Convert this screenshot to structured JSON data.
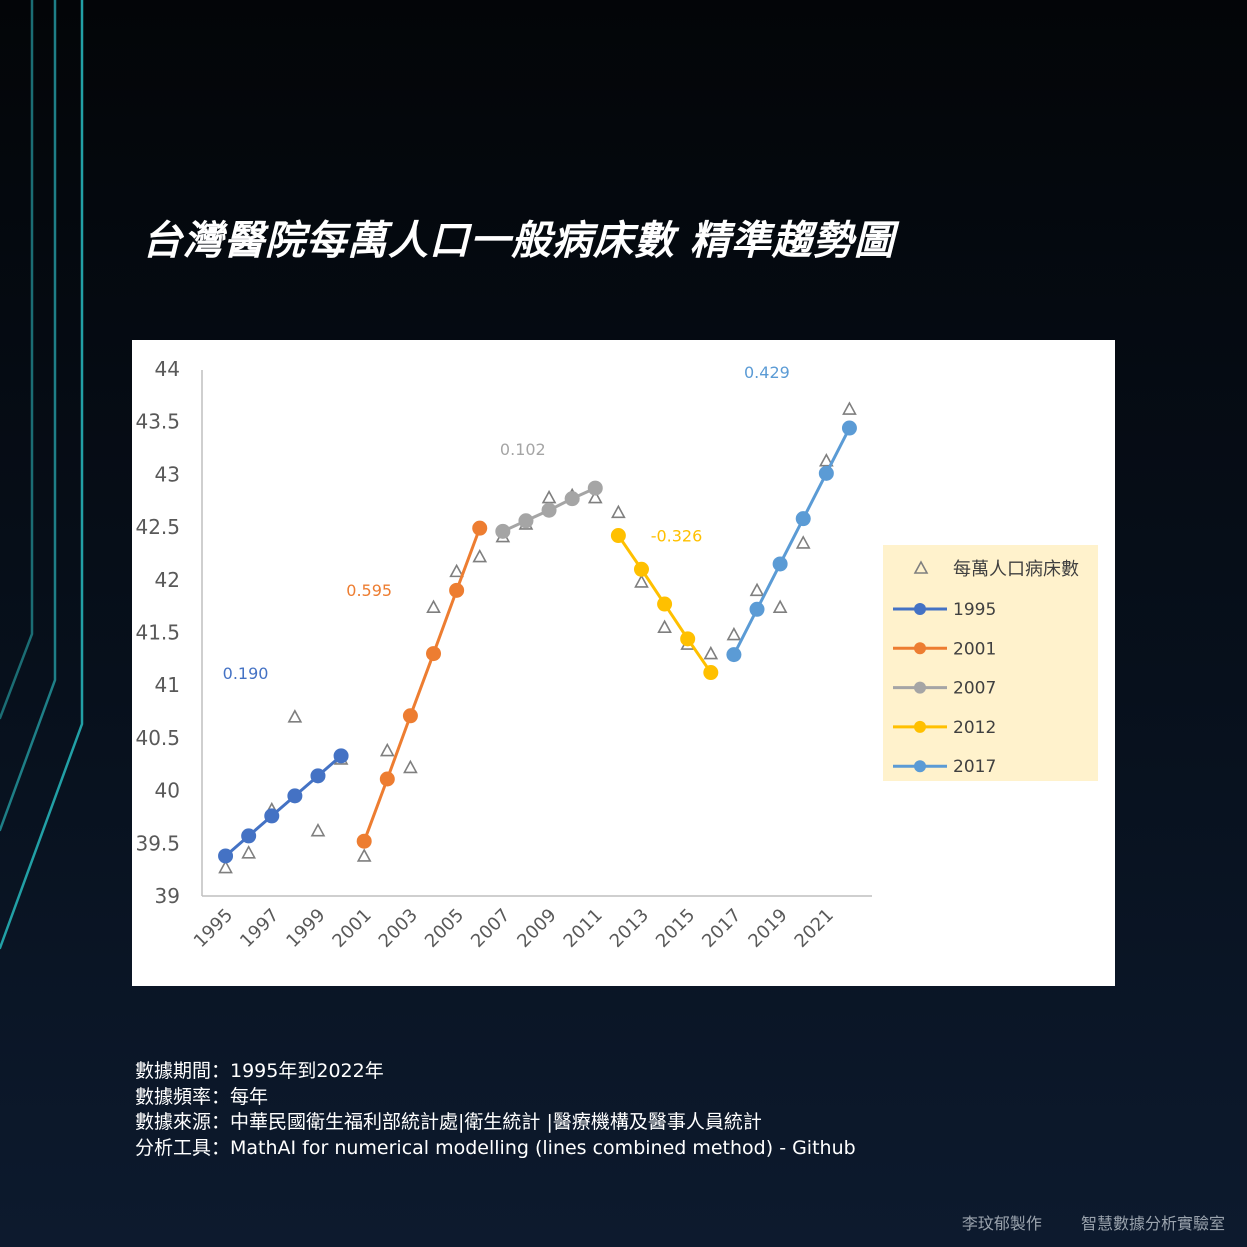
{
  "title": "台灣醫院每萬人口一般病床數 精準趨勢圖",
  "info": {
    "period": "數據期間：1995年到2022年",
    "frequency": "數據頻率：每年",
    "source": "數據來源：中華民國衛生福利部統計處|衛生統計 |醫療機構及醫事人員統計",
    "tool": "分析工具：MathAI for numerical modelling (lines combined method) - Github"
  },
  "footer": {
    "author": "李玟郁製作",
    "lab": "智慧數據分析實驗室"
  },
  "chart_data": {
    "type": "line",
    "y_ticks": [
      "44",
      "43.5",
      "43",
      "42.5",
      "42",
      "41.5",
      "41",
      "40.5",
      "40",
      "39.5",
      "39"
    ],
    "ylim": [
      39,
      44
    ],
    "xlim": [
      1995,
      2022
    ],
    "x_tick_labels": [
      "1995",
      "1997",
      "1999",
      "2001",
      "2003",
      "2005",
      "2007",
      "2009",
      "2011",
      "2013",
      "2015",
      "2017",
      "2019",
      "2021"
    ],
    "legend_position": "right",
    "grid": false,
    "observed": {
      "name": "每萬人口病床數",
      "color": "#7f7f7f",
      "x": [
        1995,
        1996,
        1997,
        1998,
        1999,
        2000,
        2001,
        2002,
        2003,
        2004,
        2005,
        2006,
        2007,
        2008,
        2009,
        2010,
        2011,
        2012,
        2013,
        2014,
        2015,
        2016,
        2017,
        2018,
        2019,
        2020,
        2021,
        2022
      ],
      "y": [
        39.27,
        39.41,
        39.82,
        40.7,
        39.62,
        40.3,
        39.38,
        40.38,
        40.22,
        41.74,
        42.08,
        42.22,
        42.41,
        42.53,
        42.78,
        42.8,
        42.78,
        42.64,
        41.98,
        41.55,
        41.39,
        41.3,
        41.48,
        41.9,
        41.74,
        42.35,
        43.13,
        43.62
      ]
    },
    "series": [
      {
        "name": "1995",
        "color": "#4472c4",
        "label": "0.190",
        "x": [
          1995,
          1996,
          1997,
          1998,
          1999,
          2000
        ],
        "y": [
          39.38,
          39.57,
          39.76,
          39.95,
          40.14,
          40.33
        ]
      },
      {
        "name": "2001",
        "color": "#ed7d31",
        "label": "0.595",
        "x": [
          2001,
          2002,
          2003,
          2004,
          2005,
          2006
        ],
        "y": [
          39.52,
          40.11,
          40.71,
          41.3,
          41.9,
          42.49
        ]
      },
      {
        "name": "2007",
        "color": "#a5a5a5",
        "label": "0.102",
        "x": [
          2007,
          2008,
          2009,
          2010,
          2011
        ],
        "y": [
          42.46,
          42.56,
          42.66,
          42.77,
          42.87
        ]
      },
      {
        "name": "2012",
        "color": "#ffc000",
        "label": "-0.326",
        "x": [
          2012,
          2013,
          2014,
          2015,
          2016
        ],
        "y": [
          42.42,
          42.1,
          41.77,
          41.44,
          41.12
        ]
      },
      {
        "name": "2017",
        "color": "#5b9bd5",
        "label": "0.429",
        "x": [
          2017,
          2018,
          2019,
          2020,
          2021,
          2022
        ],
        "y": [
          41.29,
          41.72,
          42.15,
          42.58,
          43.01,
          43.44
        ]
      }
    ]
  }
}
